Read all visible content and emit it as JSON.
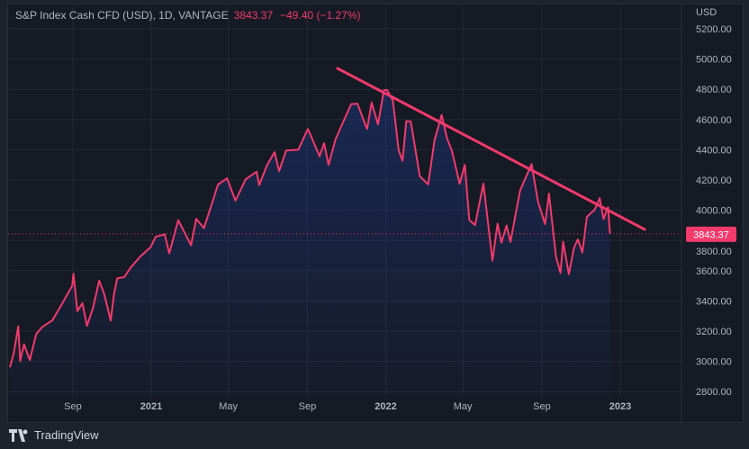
{
  "header": {
    "symbol": "S&P Index Cash CFD (USD), 1D, VANTAGE",
    "last_price": "3843.37",
    "change": "−49.40 (−1.27%)"
  },
  "footer": {
    "brand": "TradingView",
    "icon": "tradingview-logo-icon"
  },
  "colors": {
    "line": "#f23a6d",
    "fill": "#1e3a8a",
    "background": "#161a25",
    "grid": "#252936",
    "price_label": "#f23a6d"
  },
  "chart_data": {
    "type": "area",
    "title": "S&P Index Cash CFD (USD), 1D, VANTAGE",
    "currency_label": "USD",
    "ylim": [
      2800,
      5200
    ],
    "y_ticks": [
      "5200.00",
      "5000.00",
      "4800.00",
      "4600.00",
      "4400.00",
      "4200.00",
      "4000.00",
      "3800.00",
      "3600.00",
      "3400.00",
      "3200.00",
      "3000.00",
      "2800.00"
    ],
    "x_ticks": [
      {
        "label": "Sep",
        "date": "2020-09-01"
      },
      {
        "label": "2021",
        "date": "2021-01-01"
      },
      {
        "label": "May",
        "date": "2021-05-01"
      },
      {
        "label": "Sep",
        "date": "2021-09-01"
      },
      {
        "label": "2022",
        "date": "2022-01-01"
      },
      {
        "label": "May",
        "date": "2022-05-01"
      },
      {
        "label": "Sep",
        "date": "2022-09-01"
      },
      {
        "label": "2023",
        "date": "2023-01-01"
      }
    ],
    "grid": true,
    "current_price": 3843.37,
    "series": [
      {
        "points": [
          [
            "2020-05-26",
            2960
          ],
          [
            "2020-06-01",
            3055
          ],
          [
            "2020-06-08",
            3232
          ],
          [
            "2020-06-11",
            3002
          ],
          [
            "2020-06-17",
            3113
          ],
          [
            "2020-06-26",
            3009
          ],
          [
            "2020-07-06",
            3180
          ],
          [
            "2020-07-15",
            3226
          ],
          [
            "2020-07-31",
            3271
          ],
          [
            "2020-08-14",
            3372
          ],
          [
            "2020-08-31",
            3500
          ],
          [
            "2020-09-02",
            3580
          ],
          [
            "2020-09-08",
            3332
          ],
          [
            "2020-09-16",
            3385
          ],
          [
            "2020-09-23",
            3236
          ],
          [
            "2020-10-02",
            3348
          ],
          [
            "2020-10-12",
            3534
          ],
          [
            "2020-10-20",
            3443
          ],
          [
            "2020-10-30",
            3270
          ],
          [
            "2020-11-04",
            3443
          ],
          [
            "2020-11-09",
            3550
          ],
          [
            "2020-11-20",
            3557
          ],
          [
            "2020-11-30",
            3621
          ],
          [
            "2020-12-15",
            3694
          ],
          [
            "2020-12-31",
            3756
          ],
          [
            "2021-01-08",
            3824
          ],
          [
            "2021-01-22",
            3841
          ],
          [
            "2021-01-29",
            3714
          ],
          [
            "2021-02-12",
            3934
          ],
          [
            "2021-03-04",
            3768
          ],
          [
            "2021-03-12",
            3943
          ],
          [
            "2021-03-24",
            3881
          ],
          [
            "2021-03-31",
            3972
          ],
          [
            "2021-04-15",
            4170
          ],
          [
            "2021-04-29",
            4211
          ],
          [
            "2021-05-12",
            4063
          ],
          [
            "2021-05-28",
            4204
          ],
          [
            "2021-06-14",
            4255
          ],
          [
            "2021-06-18",
            4166
          ],
          [
            "2021-06-30",
            4297
          ],
          [
            "2021-07-12",
            4384
          ],
          [
            "2021-07-19",
            4258
          ],
          [
            "2021-07-30",
            4395
          ],
          [
            "2021-08-18",
            4400
          ],
          [
            "2021-08-31",
            4522
          ],
          [
            "2021-09-02",
            4537
          ],
          [
            "2021-09-20",
            4357
          ],
          [
            "2021-09-27",
            4443
          ],
          [
            "2021-10-04",
            4300
          ],
          [
            "2021-10-15",
            4471
          ],
          [
            "2021-10-29",
            4605
          ],
          [
            "2021-11-08",
            4701
          ],
          [
            "2021-11-18",
            4704
          ],
          [
            "2021-11-30",
            4567
          ],
          [
            "2021-12-03",
            4538
          ],
          [
            "2021-12-10",
            4712
          ],
          [
            "2021-12-20",
            4568
          ],
          [
            "2021-12-29",
            4793
          ],
          [
            "2022-01-03",
            4796
          ],
          [
            "2022-01-12",
            4726
          ],
          [
            "2022-01-21",
            4398
          ],
          [
            "2022-01-27",
            4326
          ],
          [
            "2022-02-02",
            4589
          ],
          [
            "2022-02-09",
            4587
          ],
          [
            "2022-02-23",
            4225
          ],
          [
            "2022-03-08",
            4170
          ],
          [
            "2022-03-18",
            4463
          ],
          [
            "2022-03-29",
            4631
          ],
          [
            "2022-04-06",
            4481
          ],
          [
            "2022-04-14",
            4392
          ],
          [
            "2022-04-26",
            4175
          ],
          [
            "2022-05-04",
            4300
          ],
          [
            "2022-05-11",
            3935
          ],
          [
            "2022-05-20",
            3901
          ],
          [
            "2022-06-02",
            4176
          ],
          [
            "2022-06-16",
            3666
          ],
          [
            "2022-06-24",
            3911
          ],
          [
            "2022-06-30",
            3785
          ],
          [
            "2022-07-08",
            3899
          ],
          [
            "2022-07-14",
            3790
          ],
          [
            "2022-07-29",
            4130
          ],
          [
            "2022-08-16",
            4305
          ],
          [
            "2022-08-26",
            4057
          ],
          [
            "2022-09-06",
            3908
          ],
          [
            "2022-09-12",
            4110
          ],
          [
            "2022-09-23",
            3693
          ],
          [
            "2022-09-30",
            3585
          ],
          [
            "2022-10-04",
            3791
          ],
          [
            "2022-10-13",
            3577
          ],
          [
            "2022-10-21",
            3752
          ],
          [
            "2022-10-27",
            3807
          ],
          [
            "2022-11-03",
            3720
          ],
          [
            "2022-11-10",
            3956
          ],
          [
            "2022-11-22",
            4003
          ],
          [
            "2022-11-30",
            4080
          ],
          [
            "2022-12-06",
            3941
          ],
          [
            "2022-12-13",
            4020
          ],
          [
            "2022-12-16",
            3843.37
          ]
        ]
      }
    ],
    "trendline": {
      "from": [
        "2021-10-18",
        4938
      ],
      "to": [
        "2023-02-08",
        3873
      ]
    }
  }
}
